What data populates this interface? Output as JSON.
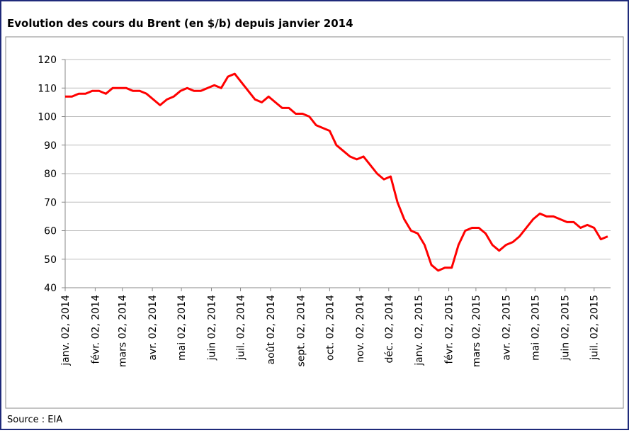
{
  "chart_data": {
    "type": "line",
    "title": "Evolution des cours du Brent (en $/b) depuis janvier 2014",
    "source": "Source : EIA",
    "x": [
      "2014-01-02",
      "2014-01-09",
      "2014-01-16",
      "2014-01-23",
      "2014-01-30",
      "2014-02-06",
      "2014-02-13",
      "2014-02-20",
      "2014-02-27",
      "2014-03-06",
      "2014-03-13",
      "2014-03-20",
      "2014-03-27",
      "2014-04-03",
      "2014-04-10",
      "2014-04-17",
      "2014-04-24",
      "2014-05-01",
      "2014-05-08",
      "2014-05-15",
      "2014-05-22",
      "2014-05-29",
      "2014-06-05",
      "2014-06-12",
      "2014-06-19",
      "2014-06-26",
      "2014-07-03",
      "2014-07-10",
      "2014-07-17",
      "2014-07-24",
      "2014-07-31",
      "2014-08-07",
      "2014-08-14",
      "2014-08-21",
      "2014-08-28",
      "2014-09-04",
      "2014-09-11",
      "2014-09-18",
      "2014-09-25",
      "2014-10-02",
      "2014-10-09",
      "2014-10-16",
      "2014-10-23",
      "2014-10-30",
      "2014-11-06",
      "2014-11-13",
      "2014-11-20",
      "2014-11-27",
      "2014-12-04",
      "2014-12-11",
      "2014-12-18",
      "2014-12-25",
      "2015-01-01",
      "2015-01-08",
      "2015-01-15",
      "2015-01-22",
      "2015-01-29",
      "2015-02-05",
      "2015-02-12",
      "2015-02-19",
      "2015-02-26",
      "2015-03-05",
      "2015-03-12",
      "2015-03-19",
      "2015-03-26",
      "2015-04-02",
      "2015-04-09",
      "2015-04-16",
      "2015-04-23",
      "2015-04-30",
      "2015-05-07",
      "2015-05-14",
      "2015-05-21",
      "2015-05-28",
      "2015-06-04",
      "2015-06-11",
      "2015-06-18",
      "2015-06-25",
      "2015-07-02",
      "2015-07-09",
      "2015-07-16"
    ],
    "series": [
      {
        "name": "Brent",
        "color": "#ff0000",
        "values": [
          107,
          107,
          108,
          108,
          109,
          109,
          108,
          110,
          110,
          110,
          109,
          109,
          108,
          106,
          104,
          106,
          107,
          109,
          110,
          109,
          109,
          110,
          111,
          110,
          114,
          115,
          112,
          109,
          106,
          105,
          107,
          105,
          103,
          103,
          101,
          101,
          100,
          97,
          96,
          95,
          90,
          88,
          86,
          85,
          86,
          83,
          80,
          78,
          79,
          70,
          64,
          60,
          59,
          55,
          48,
          46,
          47,
          47,
          55,
          60,
          61,
          61,
          59,
          55,
          53,
          55,
          56,
          58,
          61,
          64,
          66,
          65,
          65,
          64,
          63,
          63,
          61,
          62,
          61,
          57,
          58
        ]
      }
    ],
    "xlim": [
      "2014-01-02",
      "2015-07-19"
    ],
    "xticks": [
      {
        "value": "2014-01-02",
        "label": "janv. 02, 2014"
      },
      {
        "value": "2014-02-02",
        "label": "févr. 02, 2014"
      },
      {
        "value": "2014-03-02",
        "label": "mars 02, 2014"
      },
      {
        "value": "2014-04-02",
        "label": "avr. 02, 2014"
      },
      {
        "value": "2014-05-02",
        "label": "mai 02, 2014"
      },
      {
        "value": "2014-06-02",
        "label": "juin 02, 2014"
      },
      {
        "value": "2014-07-02",
        "label": "juil. 02, 2014"
      },
      {
        "value": "2014-08-02",
        "label": "août 02, 2014"
      },
      {
        "value": "2014-09-02",
        "label": "sept. 02, 2014"
      },
      {
        "value": "2014-10-02",
        "label": "oct. 02, 2014"
      },
      {
        "value": "2014-11-02",
        "label": "nov. 02, 2014"
      },
      {
        "value": "2014-12-02",
        "label": "déc. 02, 2014"
      },
      {
        "value": "2015-01-02",
        "label": "janv. 02, 2015"
      },
      {
        "value": "2015-02-02",
        "label": "févr. 02, 2015"
      },
      {
        "value": "2015-03-02",
        "label": "mars 02, 2015"
      },
      {
        "value": "2015-04-02",
        "label": "avr. 02, 2015"
      },
      {
        "value": "2015-05-02",
        "label": "mai 02, 2015"
      },
      {
        "value": "2015-06-02",
        "label": "juin 02, 2015"
      },
      {
        "value": "2015-07-02",
        "label": "juil. 02, 2015"
      }
    ],
    "ylim": [
      40,
      120
    ],
    "yticks": [
      40,
      50,
      60,
      70,
      80,
      90,
      100,
      110,
      120
    ],
    "grid": true
  }
}
